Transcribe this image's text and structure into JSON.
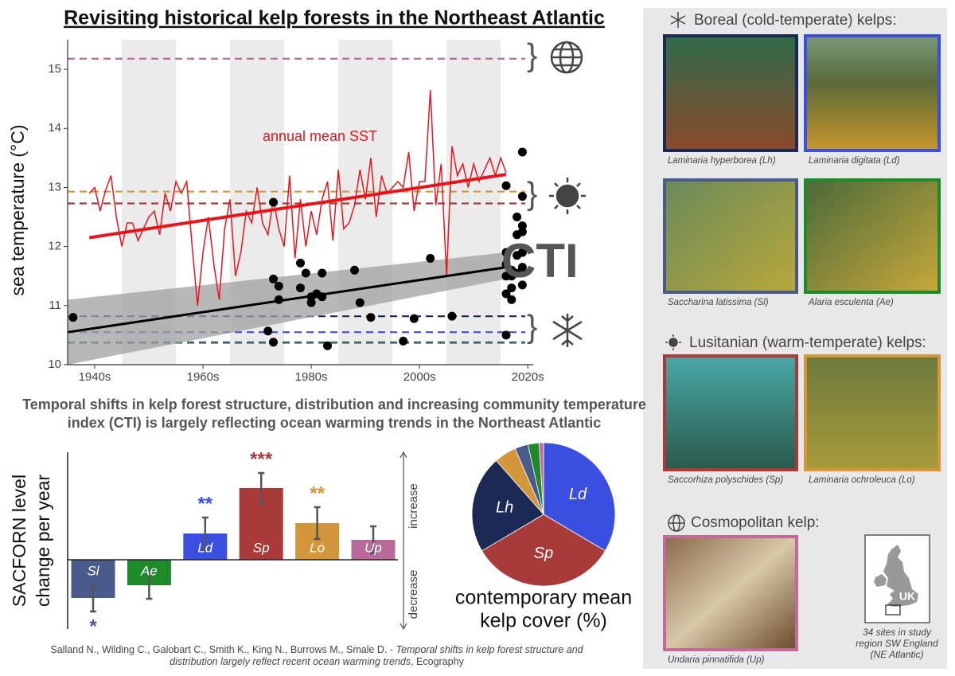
{
  "chart_data": [
    {
      "type": "line",
      "title": "Revisiting historical kelp forests in the Northeast Atlantic",
      "ylabel": "sea temperature (°C)",
      "xlim": [
        1935,
        2021
      ],
      "ylim": [
        10,
        15.5
      ],
      "xticks": [
        {
          "value": 1940,
          "label": "1940s"
        },
        {
          "value": 1960,
          "label": "1960s"
        },
        {
          "value": 1980,
          "label": "1980s"
        },
        {
          "value": 2000,
          "label": "2000s"
        },
        {
          "value": 2020,
          "label": "2020s"
        }
      ],
      "yticks": [
        10,
        11,
        12,
        13,
        14,
        15
      ],
      "shaded_bands": [
        [
          1945,
          1955
        ],
        [
          1965,
          1975
        ],
        [
          1985,
          1995
        ],
        [
          2005,
          2015
        ]
      ],
      "series": [
        {
          "name": "annual mean SST",
          "color": "#e8141c",
          "x": [
            1939,
            1940,
            1941,
            1942,
            1943,
            1944,
            1945,
            1946,
            1947,
            1948,
            1949,
            1950,
            1951,
            1952,
            1953,
            1954,
            1955,
            1956,
            1957,
            1958,
            1959,
            1960,
            1961,
            1962,
            1963,
            1964,
            1965,
            1966,
            1967,
            1968,
            1969,
            1970,
            1971,
            1972,
            1973,
            1974,
            1975,
            1976,
            1977,
            1978,
            1979,
            1980,
            1981,
            1982,
            1983,
            1984,
            1985,
            1986,
            1987,
            1988,
            1989,
            1990,
            1991,
            1992,
            1993,
            1994,
            1995,
            1996,
            1997,
            1998,
            1999,
            2000,
            2001,
            2002,
            2003,
            2004,
            2005,
            2006,
            2007,
            2008,
            2009,
            2010,
            2011,
            2012,
            2013,
            2014,
            2015,
            2016
          ],
          "values": [
            12.9,
            13.0,
            12.6,
            12.95,
            13.2,
            12.5,
            12.0,
            12.4,
            12.4,
            12.1,
            12.3,
            12.5,
            12.6,
            12.2,
            12.9,
            12.6,
            13.1,
            12.9,
            13.1,
            12.0,
            11.0,
            11.9,
            12.5,
            11.7,
            11.1,
            12.3,
            12.8,
            11.5,
            11.9,
            12.6,
            12.4,
            13.0,
            12.4,
            12.2,
            12.8,
            12.3,
            12.0,
            13.2,
            11.8,
            12.8,
            12.0,
            12.6,
            12.2,
            12.8,
            13.1,
            12.1,
            13.3,
            12.3,
            12.4,
            12.7,
            13.3,
            12.8,
            13.5,
            12.5,
            13.2,
            12.9,
            13.0,
            13.1,
            13.0,
            13.6,
            12.6,
            13.1,
            13.1,
            14.65,
            12.7,
            13.4,
            11.5,
            13.7,
            13.2,
            13.4,
            13.0,
            13.4,
            13.1,
            13.3,
            13.5,
            13.2,
            13.5,
            13.25
          ]
        }
      ],
      "trends": [
        {
          "color": "#e8141c",
          "x": [
            1939,
            2016
          ],
          "values": [
            12.15,
            13.22
          ]
        },
        {
          "color": "#000000",
          "x": [
            1935,
            2016
          ],
          "values": [
            10.55,
            11.65
          ]
        }
      ],
      "confidence_band": {
        "color": "#a0a0a0",
        "x": [
          1935,
          2016
        ],
        "lower": [
          10.0,
          11.45
        ],
        "upper": [
          11.1,
          11.9
        ]
      },
      "points": {
        "name": "CTI",
        "color": "#000000",
        "x": [
          1936,
          1973,
          1972,
          1973,
          1973,
          1974,
          1974,
          1978,
          1978,
          1979,
          1980,
          1980,
          1981,
          1982,
          1982,
          1983,
          1988,
          1989,
          1991,
          1997,
          1999,
          2002,
          2006,
          2016,
          2016,
          2016,
          2016,
          2016,
          2016,
          2017,
          2017,
          2017,
          2017,
          2018,
          2018,
          2018,
          2018,
          2019,
          2019,
          2019,
          2019,
          2019,
          2019,
          2019
        ],
        "values": [
          10.8,
          12.75,
          10.57,
          10.38,
          11.45,
          11.33,
          11.1,
          11.72,
          11.3,
          11.55,
          11.15,
          11.05,
          11.2,
          11.55,
          11.15,
          10.32,
          11.6,
          11.05,
          10.8,
          10.4,
          10.78,
          11.8,
          10.82,
          10.5,
          13.03,
          11.9,
          11.5,
          11.2,
          11.7,
          11.5,
          11.6,
          11.3,
          11.1,
          12.5,
          12.2,
          11.85,
          11.55,
          13.6,
          12.85,
          12.35,
          12.25,
          11.9,
          11.65,
          11.35
        ]
      },
      "reference_lines": [
        {
          "value": 15.18,
          "color": "#c46a9a"
        },
        {
          "value": 12.93,
          "color": "#d89a3a"
        },
        {
          "value": 12.73,
          "color": "#a83a3a"
        },
        {
          "value": 10.82,
          "color": "#1a2a55"
        },
        {
          "value": 10.55,
          "color": "#3a4ee0"
        },
        {
          "value": 10.38,
          "color": "#1f8a2a"
        },
        {
          "value": 10.37,
          "color": "#4a5a8a"
        }
      ]
    },
    {
      "type": "bar",
      "ylabel": [
        "SACFORN level",
        "change per year"
      ],
      "ylim": [
        -0.87,
        1.35
      ],
      "categories": [
        "Sl",
        "Ae",
        "Ld",
        "Sp",
        "Lo",
        "Up"
      ],
      "values": [
        -0.48,
        -0.32,
        0.33,
        0.9,
        0.46,
        0.25
      ],
      "errors": [
        0.17,
        0.17,
        0.2,
        0.19,
        0.2,
        0.17
      ],
      "colors": [
        "#4a5a8a",
        "#1f8a2a",
        "#3a4ee0",
        "#a83a3a",
        "#d4963a",
        "#b86a9a"
      ],
      "significance": [
        "*",
        null,
        "**",
        "***",
        "**",
        null
      ],
      "direction_labels": [
        "increase",
        "decrease"
      ]
    },
    {
      "type": "pie",
      "title": [
        "contemporary mean",
        "kelp cover (%)"
      ],
      "categories": [
        "Ld",
        "Sp",
        "Lh",
        null,
        null,
        null,
        null
      ],
      "values": [
        33.5,
        33,
        22,
        5,
        3,
        2.5,
        1
      ],
      "colors": [
        "#3a4ee0",
        "#a83a3a",
        "#1a2a55",
        "#d4963a",
        "#4a5a8a",
        "#1f8a2a",
        "#c46a9a"
      ]
    }
  ],
  "caption": [
    "Temporal shifts in kelp forest structure, distribution and increasing community temperature",
    "index (CTI) is largely reflecting ocean warming trends in the Northeast Atlantic"
  ],
  "citation": {
    "authors": "Salland N., Wilding C., Galobart C., Smith K., King N., Burrows M., Smale D. - ",
    "title_1": "Temporal shifts in kelp forest structure and",
    "title_2": "distribution largely reflect recent ocean warming trends",
    "journal": ", Ecography"
  },
  "panel": {
    "sections": [
      {
        "heading": "Boreal (cold-temperate) kelps:",
        "photos": [
          {
            "caption": "Laminaria hyperborea (Lh)",
            "border": "#1a2a55"
          },
          {
            "caption": "Laminaria digitata (Ld)",
            "border": "#3a4ee0"
          },
          {
            "caption": "Saccharina latissima (Sl)",
            "border": "#4a5a8a"
          },
          {
            "caption": "Alaria esculenta (Ae)",
            "border": "#1f8a2a"
          }
        ]
      },
      {
        "heading": "Lusitanian (warm-temperate) kelps:",
        "photos": [
          {
            "caption": "Saccorhiza polyschides (Sp)",
            "border": "#a83a3a"
          },
          {
            "caption": "Laminaria ochroleuca (Lo)",
            "border": "#d4963a"
          }
        ]
      },
      {
        "heading": "Cosmopolitan kelp:",
        "photos": [
          {
            "caption": "Undaria pinnatifida (Up)",
            "border": "#c46a9a"
          }
        ]
      }
    ],
    "map": {
      "label": "UK",
      "note": [
        "34 sites in study",
        "region SW England",
        "(NE Atlantic)"
      ]
    }
  }
}
